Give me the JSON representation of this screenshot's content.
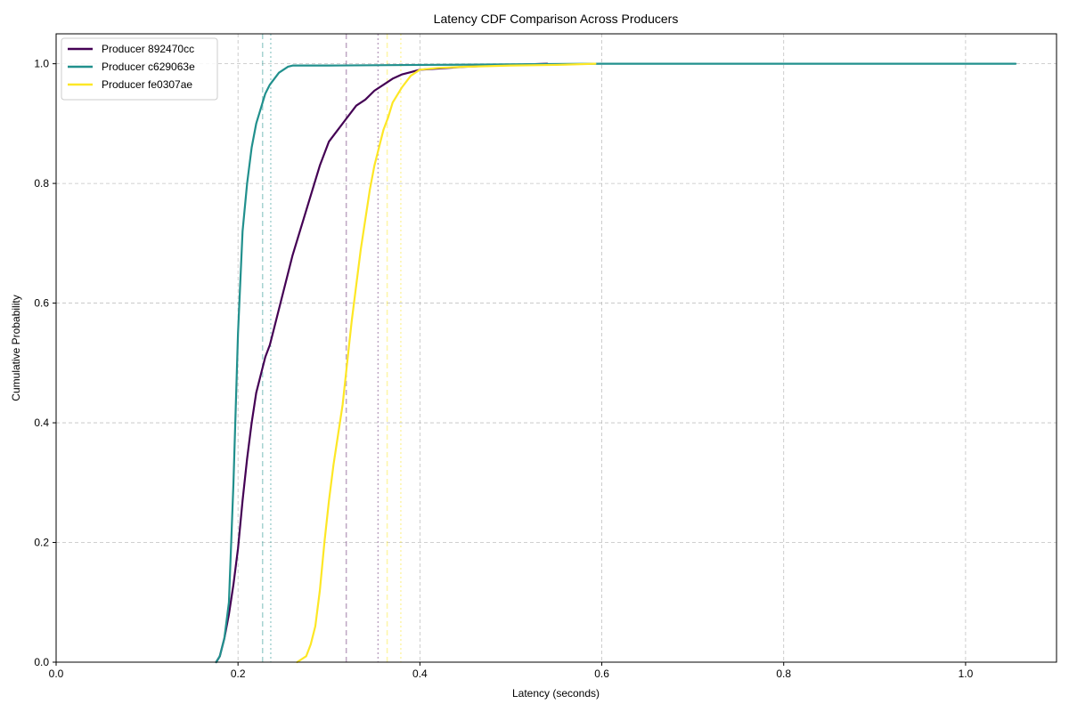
{
  "chart_data": {
    "type": "line",
    "title": "Latency CDF Comparison Across Producers",
    "xlabel": "Latency (seconds)",
    "ylabel": "Cumulative Probability",
    "xlim": [
      0.0,
      1.1
    ],
    "ylim": [
      0.0,
      1.05
    ],
    "xticks": [
      0.0,
      0.2,
      0.4,
      0.6,
      0.8,
      1.0
    ],
    "yticks": [
      0.0,
      0.2,
      0.4,
      0.6,
      0.8,
      1.0
    ],
    "xtick_labels": [
      "0.0",
      "0.2",
      "0.4",
      "0.6",
      "0.8",
      "1.0"
    ],
    "ytick_labels": [
      "0.0",
      "0.2",
      "0.4",
      "0.6",
      "0.8",
      "1.0"
    ],
    "grid": true,
    "legend_position": "top-left",
    "series": [
      {
        "name": "Producer 892470cc",
        "color": "#440154",
        "x": [
          0.176,
          0.18,
          0.185,
          0.19,
          0.195,
          0.2,
          0.205,
          0.21,
          0.215,
          0.22,
          0.225,
          0.23,
          0.235,
          0.24,
          0.25,
          0.26,
          0.27,
          0.28,
          0.29,
          0.3,
          0.31,
          0.32,
          0.33,
          0.34,
          0.35,
          0.36,
          0.37,
          0.38,
          0.39,
          0.4,
          0.42,
          0.45,
          0.5,
          0.54
        ],
        "y": [
          0.0,
          0.01,
          0.04,
          0.08,
          0.13,
          0.19,
          0.27,
          0.34,
          0.4,
          0.45,
          0.48,
          0.51,
          0.53,
          0.56,
          0.62,
          0.68,
          0.73,
          0.78,
          0.83,
          0.87,
          0.89,
          0.91,
          0.93,
          0.94,
          0.955,
          0.965,
          0.975,
          0.982,
          0.986,
          0.99,
          0.992,
          0.995,
          0.998,
          1.0
        ]
      },
      {
        "name": "Producer c629063e",
        "color": "#21908d",
        "x": [
          0.176,
          0.18,
          0.185,
          0.19,
          0.195,
          0.2,
          0.205,
          0.21,
          0.215,
          0.22,
          0.225,
          0.23,
          0.235,
          0.24,
          0.245,
          0.25,
          0.255,
          0.26,
          0.3,
          0.4,
          0.6,
          1.055
        ],
        "y": [
          0.0,
          0.01,
          0.04,
          0.1,
          0.3,
          0.55,
          0.72,
          0.8,
          0.86,
          0.9,
          0.925,
          0.95,
          0.965,
          0.975,
          0.985,
          0.99,
          0.995,
          0.997,
          0.997,
          0.998,
          1.0,
          1.0
        ]
      },
      {
        "name": "Producer fe0307ae",
        "color": "#fde725",
        "x": [
          0.265,
          0.27,
          0.275,
          0.28,
          0.285,
          0.29,
          0.295,
          0.3,
          0.305,
          0.31,
          0.315,
          0.32,
          0.325,
          0.33,
          0.335,
          0.34,
          0.345,
          0.35,
          0.355,
          0.36,
          0.365,
          0.37,
          0.38,
          0.39,
          0.4,
          0.42,
          0.45,
          0.5,
          0.55,
          0.593
        ],
        "y": [
          0.0,
          0.005,
          0.01,
          0.03,
          0.06,
          0.12,
          0.2,
          0.27,
          0.33,
          0.38,
          0.43,
          0.5,
          0.57,
          0.63,
          0.69,
          0.74,
          0.79,
          0.83,
          0.86,
          0.89,
          0.91,
          0.935,
          0.96,
          0.98,
          0.99,
          0.993,
          0.995,
          0.997,
          0.998,
          1.0
        ]
      }
    ],
    "reference_lines": [
      {
        "x": 0.227,
        "color": "#21908d",
        "style": "dashed",
        "opacity": 0.4
      },
      {
        "x": 0.236,
        "color": "#21908d",
        "style": "dotted",
        "opacity": 0.4
      },
      {
        "x": 0.319,
        "color": "#440154",
        "style": "dashed",
        "opacity": 0.35
      },
      {
        "x": 0.354,
        "color": "#440154",
        "style": "dotted",
        "opacity": 0.35
      },
      {
        "x": 0.364,
        "color": "#fde725",
        "style": "dashed",
        "opacity": 0.4
      },
      {
        "x": 0.379,
        "color": "#fde725",
        "style": "dotted",
        "opacity": 0.4
      }
    ]
  }
}
